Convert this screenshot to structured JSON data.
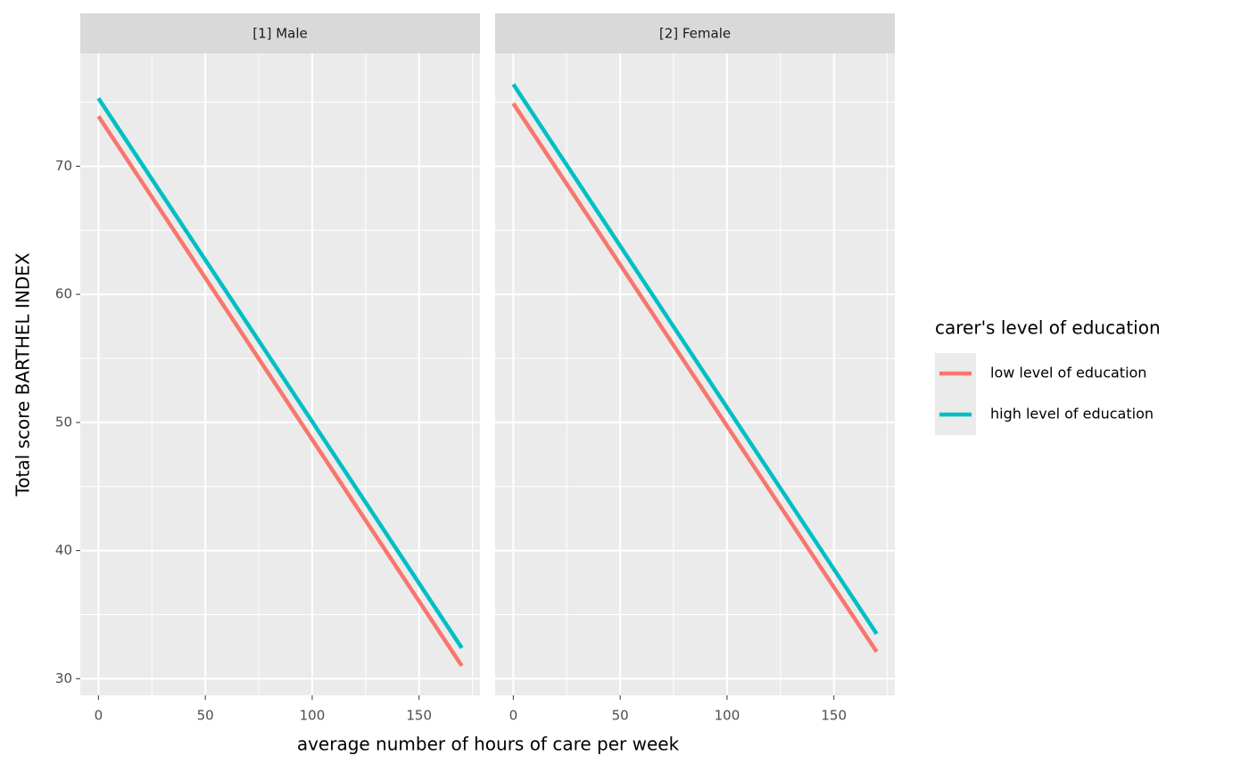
{
  "chart_data": {
    "type": "line",
    "x_label": "average number of hours of care per week",
    "y_label": "Total score BARTHEL INDEX",
    "legend_title": "carer's level of education",
    "legend_position": "right",
    "grid": true,
    "x": [
      0,
      170
    ],
    "xlim": [
      -8.5,
      178.5
    ],
    "ylim": [
      28.7,
      78.8
    ],
    "xticks": [
      0,
      50,
      100,
      150
    ],
    "yticks": [
      30,
      40,
      50,
      60,
      70
    ],
    "facets": [
      {
        "title": "[1] Male",
        "series": [
          {
            "name": "low level of education",
            "color": "#F8766D",
            "values": [
              73.9,
              31.0
            ]
          },
          {
            "name": "high level of education",
            "color": "#00BFC4",
            "values": [
              75.3,
              32.4
            ]
          }
        ]
      },
      {
        "title": "[2] Female",
        "series": [
          {
            "name": "low level of education",
            "color": "#F8766D",
            "values": [
              74.9,
              32.1
            ]
          },
          {
            "name": "high level of education",
            "color": "#00BFC4",
            "values": [
              76.4,
              33.5
            ]
          }
        ]
      }
    ]
  }
}
